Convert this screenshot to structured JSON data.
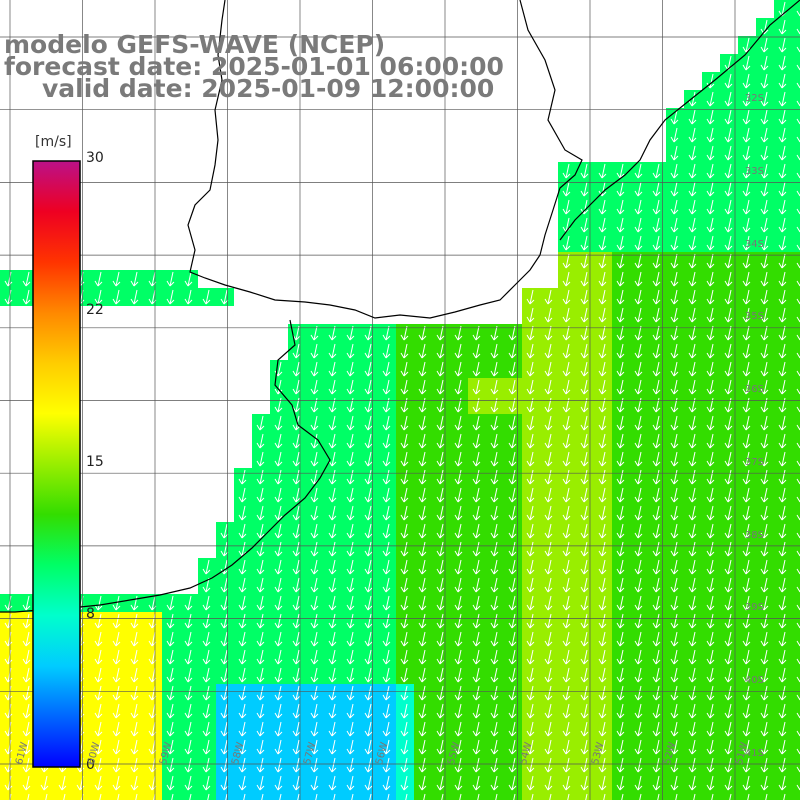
{
  "title": {
    "line1": "modelo GEFS-WAVE (NCEP)",
    "line2": "forecast date: 2025-01-01 06:00:00",
    "line3": "valid date: 2025-01-09 12:00:00"
  },
  "colorbar": {
    "unit": "[m/s]",
    "ticks": [
      "30",
      "22",
      "15",
      "8",
      "0"
    ],
    "range": [
      0,
      30
    ],
    "colors": [
      "#0000ff",
      "#0066ff",
      "#00ccff",
      "#00ffcc",
      "#00ff66",
      "#33dd00",
      "#99ee00",
      "#ffff00",
      "#ffcc00",
      "#ff8800",
      "#ff3300",
      "#ee0022",
      "#bb1188"
    ]
  },
  "axes": {
    "lat_labels": [
      "32S",
      "33S",
      "34S",
      "35S",
      "36S",
      "37S",
      "38S",
      "39S",
      "40S",
      "41S"
    ],
    "lon_labels": [
      "61W",
      "60W",
      "59W",
      "58W",
      "57W",
      "56W",
      "55W",
      "54W",
      "53W",
      "52W",
      "51W"
    ]
  },
  "map": {
    "land_color": "#ffffff",
    "coast_color": "#000000",
    "grid_color": "#555555",
    "arrow_color": "#ffffff",
    "arrow_direction": "south-southwest"
  }
}
